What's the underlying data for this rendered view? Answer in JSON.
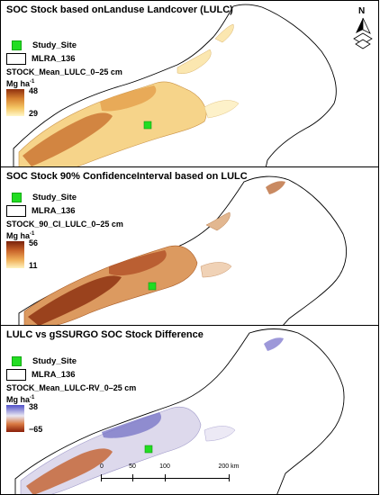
{
  "panels": [
    {
      "title": "SOC Stock based onLanduse Landcover (LULC)",
      "legend": {
        "site_label": "Study_Site",
        "boundary_label": "MLRA_136",
        "field_label": "STOCK_Mean_LULC_0–25 cm",
        "unit_base": "Mg ha",
        "unit_exp": "-1",
        "high": "48",
        "low": "29"
      }
    },
    {
      "title": "SOC Stock 90% ConfidenceInterval based on LULC",
      "legend": {
        "site_label": "Study_Site",
        "boundary_label": "MLRA_136",
        "field_label": "STOCK_90_CI_LULC_0–25 cm",
        "unit_base": "Mg ha",
        "unit_exp": "-1",
        "high": "56",
        "low": "11"
      }
    },
    {
      "title": "LULC vs gSSURGO SOC Stock Difference",
      "legend": {
        "site_label": "Study_Site",
        "boundary_label": "MLRA_136",
        "field_label": "STOCK_Mean_LULC-RV_0–25 cm",
        "unit_base": "Mg ha",
        "unit_exp": "-1",
        "high": "38",
        "low": "−65"
      }
    }
  ],
  "scale_bar": {
    "ticks": [
      "0",
      "50",
      "100",
      "200 km"
    ]
  },
  "north_arrow": {
    "label": "N",
    "icon": "north-arrow-icon"
  },
  "colors": {
    "site": "#22dd22",
    "ramp1": [
      "#fff6c8",
      "#f5c764",
      "#d68130",
      "#8f2f0e"
    ],
    "ramp2": [
      "#fff3c0",
      "#f0b15a",
      "#c9642a",
      "#7a220c"
    ],
    "ramp3": [
      "#5050c8",
      "#e9e6f2",
      "#d97a43",
      "#8a1e08"
    ]
  }
}
